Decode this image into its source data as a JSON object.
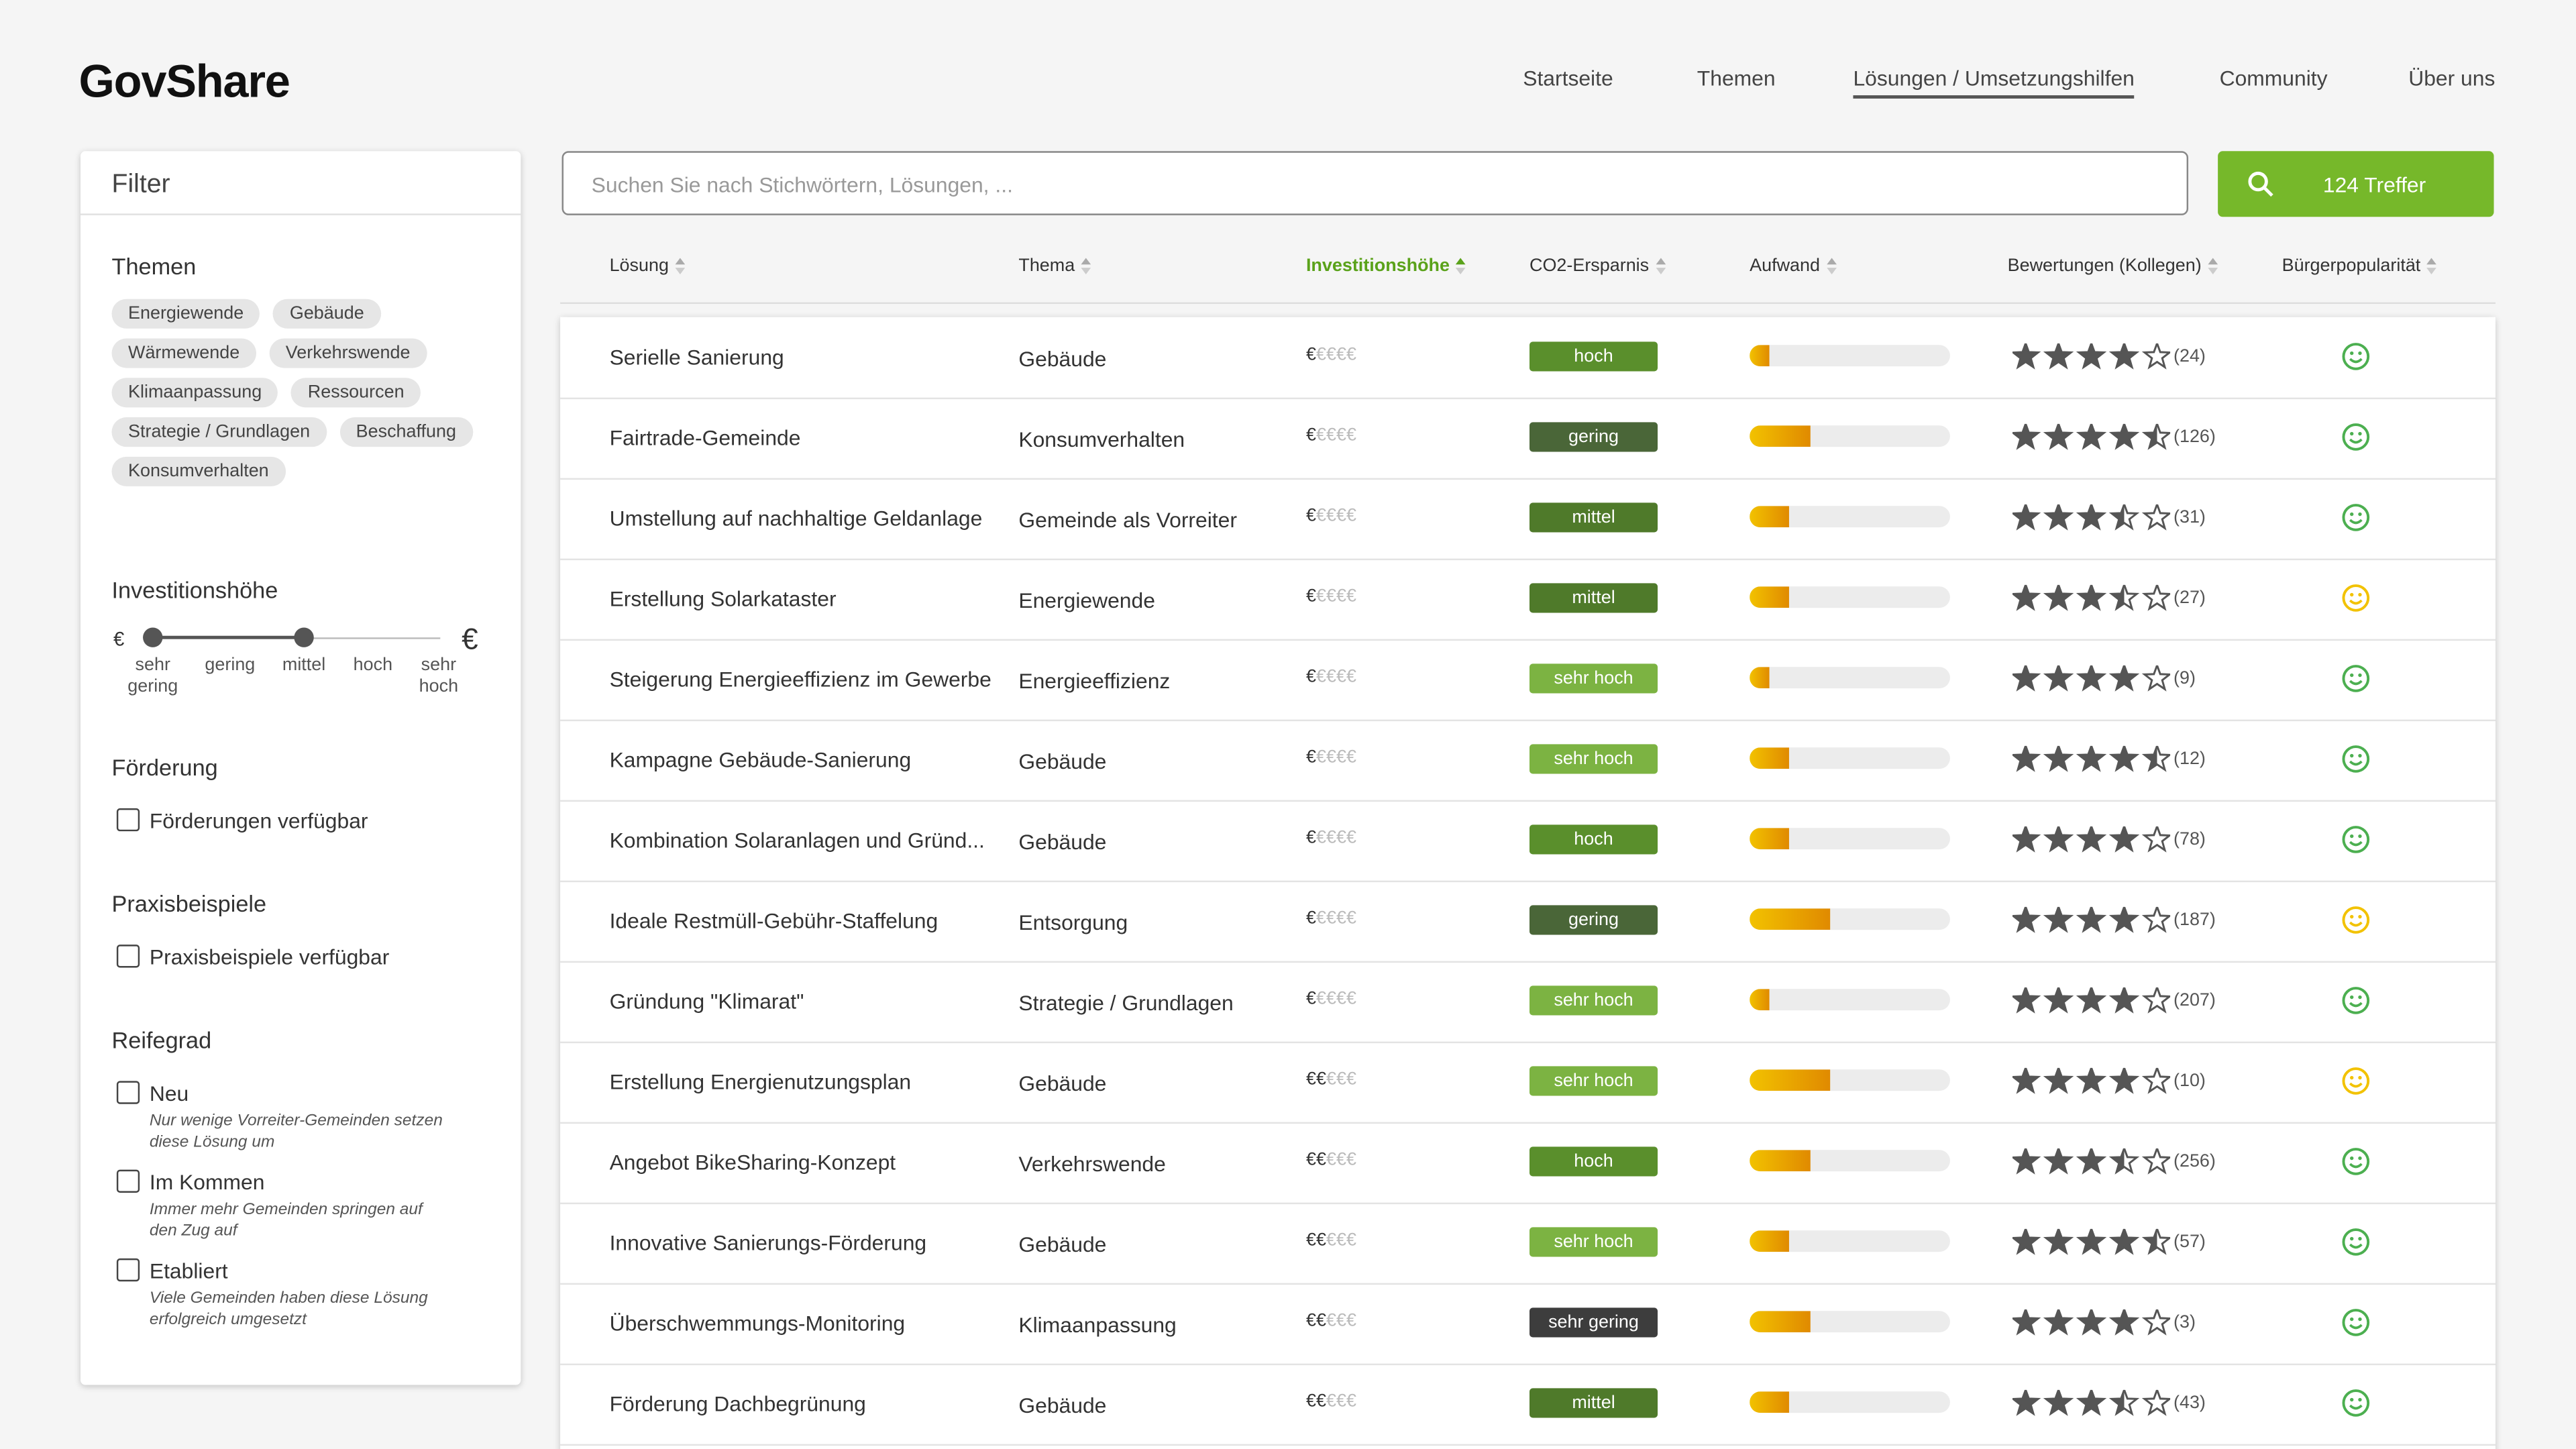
{
  "header": {
    "logo": "GovShare",
    "nav": [
      "Startseite",
      "Themen",
      "Lösungen / Umsetzungshilfen",
      "Community",
      "Über uns"
    ]
  },
  "filter": {
    "title": "Filter",
    "themen": {
      "title": "Themen",
      "tags": [
        "Energiewende",
        "Gebäude",
        "Wärmewende",
        "Verkehrswende",
        "Klimaanpassung",
        "Ressourcen",
        "Strategie / Grundlagen",
        "Beschaffung",
        "Konsumverhalten"
      ]
    },
    "invest": {
      "title": "Investitionshöhe",
      "currency": "€",
      "levels": [
        "sehr gering",
        "gering",
        "mittel",
        "hoch",
        "sehr hoch"
      ]
    },
    "foerderung": {
      "title": "Förderung",
      "option": "Förderungen verfügbar"
    },
    "praxis": {
      "title": "Praxisbeispiele",
      "option": "Praxisbeispiele verfügbar"
    },
    "reifegrad": {
      "title": "Reifegrad",
      "options": [
        {
          "label": "Neu",
          "description": "Nur wenige Vorreiter-Gemeinden setzen diese Lösung um"
        },
        {
          "label": "Im Kommen",
          "description": "Immer mehr Gemeinden springen auf den Zug auf"
        },
        {
          "label": "Etabliert",
          "description": "Viele Gemeinden haben diese Lösung erfolgreich umgesetzt"
        }
      ]
    }
  },
  "search": {
    "placeholder": "Suchen Sie nach Stichwörtern, Lösungen, ...",
    "button": "124 Treffer"
  },
  "table": {
    "headers": [
      "Lösung",
      "Thema",
      "Investitionshöhe",
      "CO2-Ersparnis",
      "Aufwand",
      "Bewertungen (Kollegen)",
      "Bürgerpopularität"
    ],
    "rows": [
      {
        "name": "Serielle Sanierung",
        "thema": "Gebäude",
        "invest": 1,
        "co2": "hoch",
        "co2_color": "#5a8f2c",
        "aufwand": 10,
        "rating": 4,
        "reviews": "(24)",
        "smiley_color": "#4caf50"
      },
      {
        "name": "Fairtrade-Gemeinde",
        "thema": "Konsumverhalten",
        "invest": 1,
        "co2": "gering",
        "co2_color": "#4a6638",
        "aufwand": 30,
        "rating": 4.5,
        "reviews": "(126)",
        "smiley_color": "#4caf50"
      },
      {
        "name": "Umstellung auf nachhaltige Geldanlage",
        "thema": "Gemeinde als Vorreiter",
        "invest": 1,
        "co2": "mittel",
        "co2_color": "#4f7a2a",
        "aufwand": 20,
        "rating": 3.5,
        "reviews": "(31)",
        "smiley_color": "#4caf50"
      },
      {
        "name": "Erstellung Solarkataster",
        "thema": "Energiewende",
        "invest": 1,
        "co2": "mittel",
        "co2_color": "#4f7a2a",
        "aufwand": 20,
        "rating": 3.5,
        "reviews": "(27)",
        "smiley_color": "#f2c200"
      },
      {
        "name": "Steigerung Energieeffizienz im Gewerbe",
        "thema": "Energieeffizienz",
        "invest": 1,
        "co2": "sehr hoch",
        "co2_color": "#7cb342",
        "aufwand": 10,
        "rating": 4,
        "reviews": "(9)",
        "smiley_color": "#4caf50"
      },
      {
        "name": "Kampagne Gebäude-Sanierung",
        "thema": "Gebäude",
        "invest": 1,
        "co2": "sehr hoch",
        "co2_color": "#7cb342",
        "aufwand": 20,
        "rating": 4.5,
        "reviews": "(12)",
        "smiley_color": "#4caf50"
      },
      {
        "name": "Kombination Solaranlagen und Gründ...",
        "thema": "Gebäude",
        "invest": 1,
        "co2": "hoch",
        "co2_color": "#5a8f2c",
        "aufwand": 20,
        "rating": 4,
        "reviews": "(78)",
        "smiley_color": "#4caf50"
      },
      {
        "name": "Ideale Restmüll-Gebühr-Staffelung",
        "thema": "Entsorgung",
        "invest": 1,
        "co2": "gering",
        "co2_color": "#4a6638",
        "aufwand": 40,
        "rating": 4,
        "reviews": "(187)",
        "smiley_color": "#f2c200"
      },
      {
        "name": "Gründung \"Klimarat\"",
        "thema": "Strategie / Grundlagen",
        "invest": 1,
        "co2": "sehr hoch",
        "co2_color": "#7cb342",
        "aufwand": 10,
        "rating": 4,
        "reviews": "(207)",
        "smiley_color": "#4caf50"
      },
      {
        "name": "Erstellung Energienutzungsplan",
        "thema": "Gebäude",
        "invest": 2,
        "co2": "sehr hoch",
        "co2_color": "#7cb342",
        "aufwand": 40,
        "rating": 4,
        "reviews": "(10)",
        "smiley_color": "#f2c200"
      },
      {
        "name": "Angebot BikeSharing-Konzept",
        "thema": "Verkehrswende",
        "invest": 2,
        "co2": "hoch",
        "co2_color": "#5a8f2c",
        "aufwand": 30,
        "rating": 3.5,
        "reviews": "(256)",
        "smiley_color": "#4caf50"
      },
      {
        "name": "Innovative Sanierungs-Förderung",
        "thema": "Gebäude",
        "invest": 2,
        "co2": "sehr hoch",
        "co2_color": "#7cb342",
        "aufwand": 20,
        "rating": 4.5,
        "reviews": "(57)",
        "smiley_color": "#4caf50"
      },
      {
        "name": "Überschwemmungs-Monitoring",
        "thema": "Klimaanpassung",
        "invest": 2,
        "co2": "sehr gering",
        "co2_color": "#3d3d3d",
        "aufwand": 30,
        "rating": 4,
        "reviews": "(3)",
        "smiley_color": "#4caf50"
      },
      {
        "name": "Förderung Dachbegrünung",
        "thema": "Gebäude",
        "invest": 2,
        "co2": "mittel",
        "co2_color": "#4f7a2a",
        "aufwand": 20,
        "rating": 3.5,
        "reviews": "(43)",
        "smiley_color": "#4caf50"
      }
    ]
  }
}
